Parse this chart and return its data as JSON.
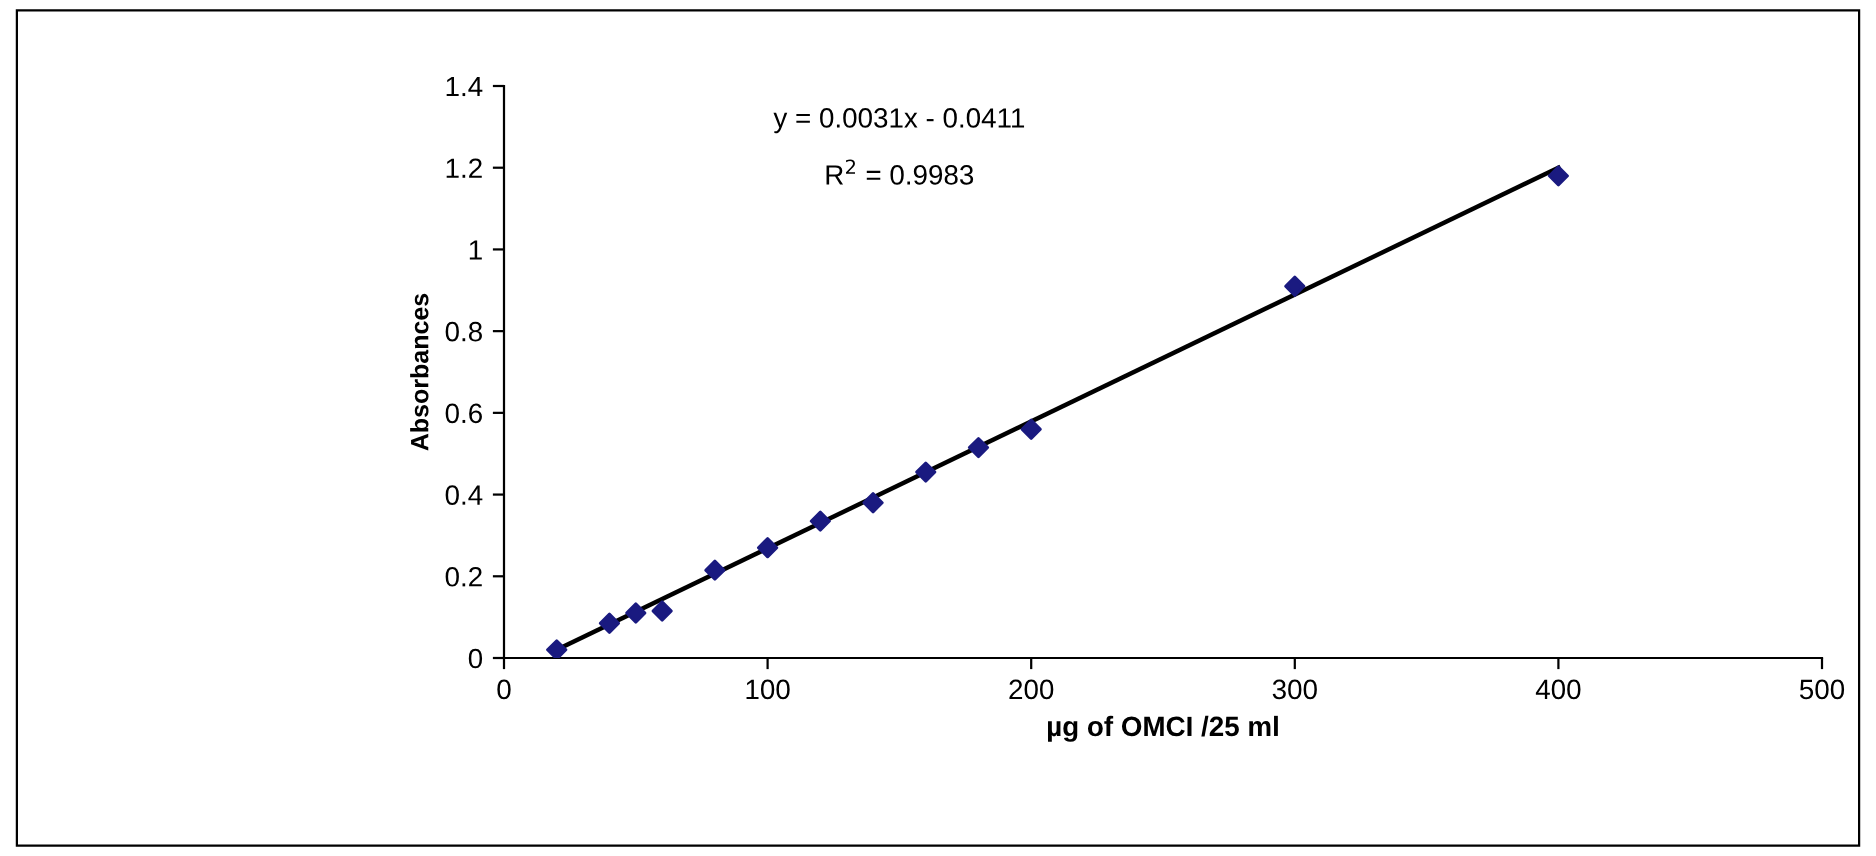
{
  "chart_data": {
    "type": "scatter",
    "xlabel": "µg of OMCI /25 ml",
    "ylabel": "Absorbances",
    "xlim": [
      0,
      500
    ],
    "xticks": [
      0,
      100,
      200,
      300,
      400,
      500
    ],
    "ylim": [
      0,
      1.4
    ],
    "yticks": [
      0,
      0.2,
      0.4,
      0.6,
      0.8,
      1,
      1.2,
      1.4
    ],
    "grid": false,
    "legend": false,
    "annotations": [
      "y = 0.0031x - 0.0411",
      "R$^{2}$ = 0.9983"
    ],
    "series": [
      {
        "color": "#1a1a80",
        "marker": "diamond",
        "x": [
          20,
          40,
          50,
          60,
          80,
          100,
          120,
          140,
          160,
          180,
          200,
          300,
          400
        ],
        "values": [
          0.02,
          0.085,
          0.11,
          0.115,
          0.215,
          0.27,
          0.335,
          0.38,
          0.455,
          0.515,
          0.56,
          0.91,
          1.18
        ]
      },
      {
        "type": "line",
        "color": "#000000",
        "line_style": "solid",
        "x": [
          20,
          400
        ],
        "values": [
          0.02,
          1.2
        ]
      }
    ]
  }
}
